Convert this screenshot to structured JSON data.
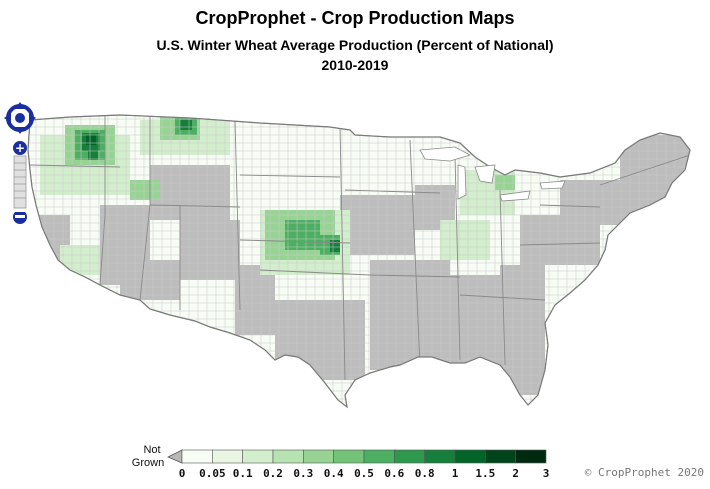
{
  "titles": {
    "main": "CropProphet - Crop Production Maps",
    "subtitle": "U.S. Winter Wheat Average Production (Percent of National)",
    "period": "2010-2019"
  },
  "legend": {
    "not_grown_line1": "Not",
    "not_grown_line2": "Grown",
    "not_grown_color": "#b8b8b8",
    "ticks": [
      "0",
      "0.05",
      "0.1",
      "0.2",
      "0.3",
      "0.4",
      "0.5",
      "0.6",
      "0.8",
      "1",
      "1.5",
      "2",
      "3"
    ],
    "colors": [
      "#f7fcf5",
      "#e8f6e3",
      "#d3eecd",
      "#b7e2b1",
      "#97d494",
      "#73c378",
      "#4daf62",
      "#2f984f",
      "#157f3b",
      "#036429",
      "#00441b",
      "#002a10"
    ]
  },
  "map": {
    "not_grown_color": "#bdbdbd",
    "background_county_color": "#f7fcf5",
    "border_color": "#9a9a9a"
  },
  "nav": {
    "zoom_in_label": "+",
    "zoom_out_label": "−"
  },
  "copyright": "© CropProphet 2020"
}
